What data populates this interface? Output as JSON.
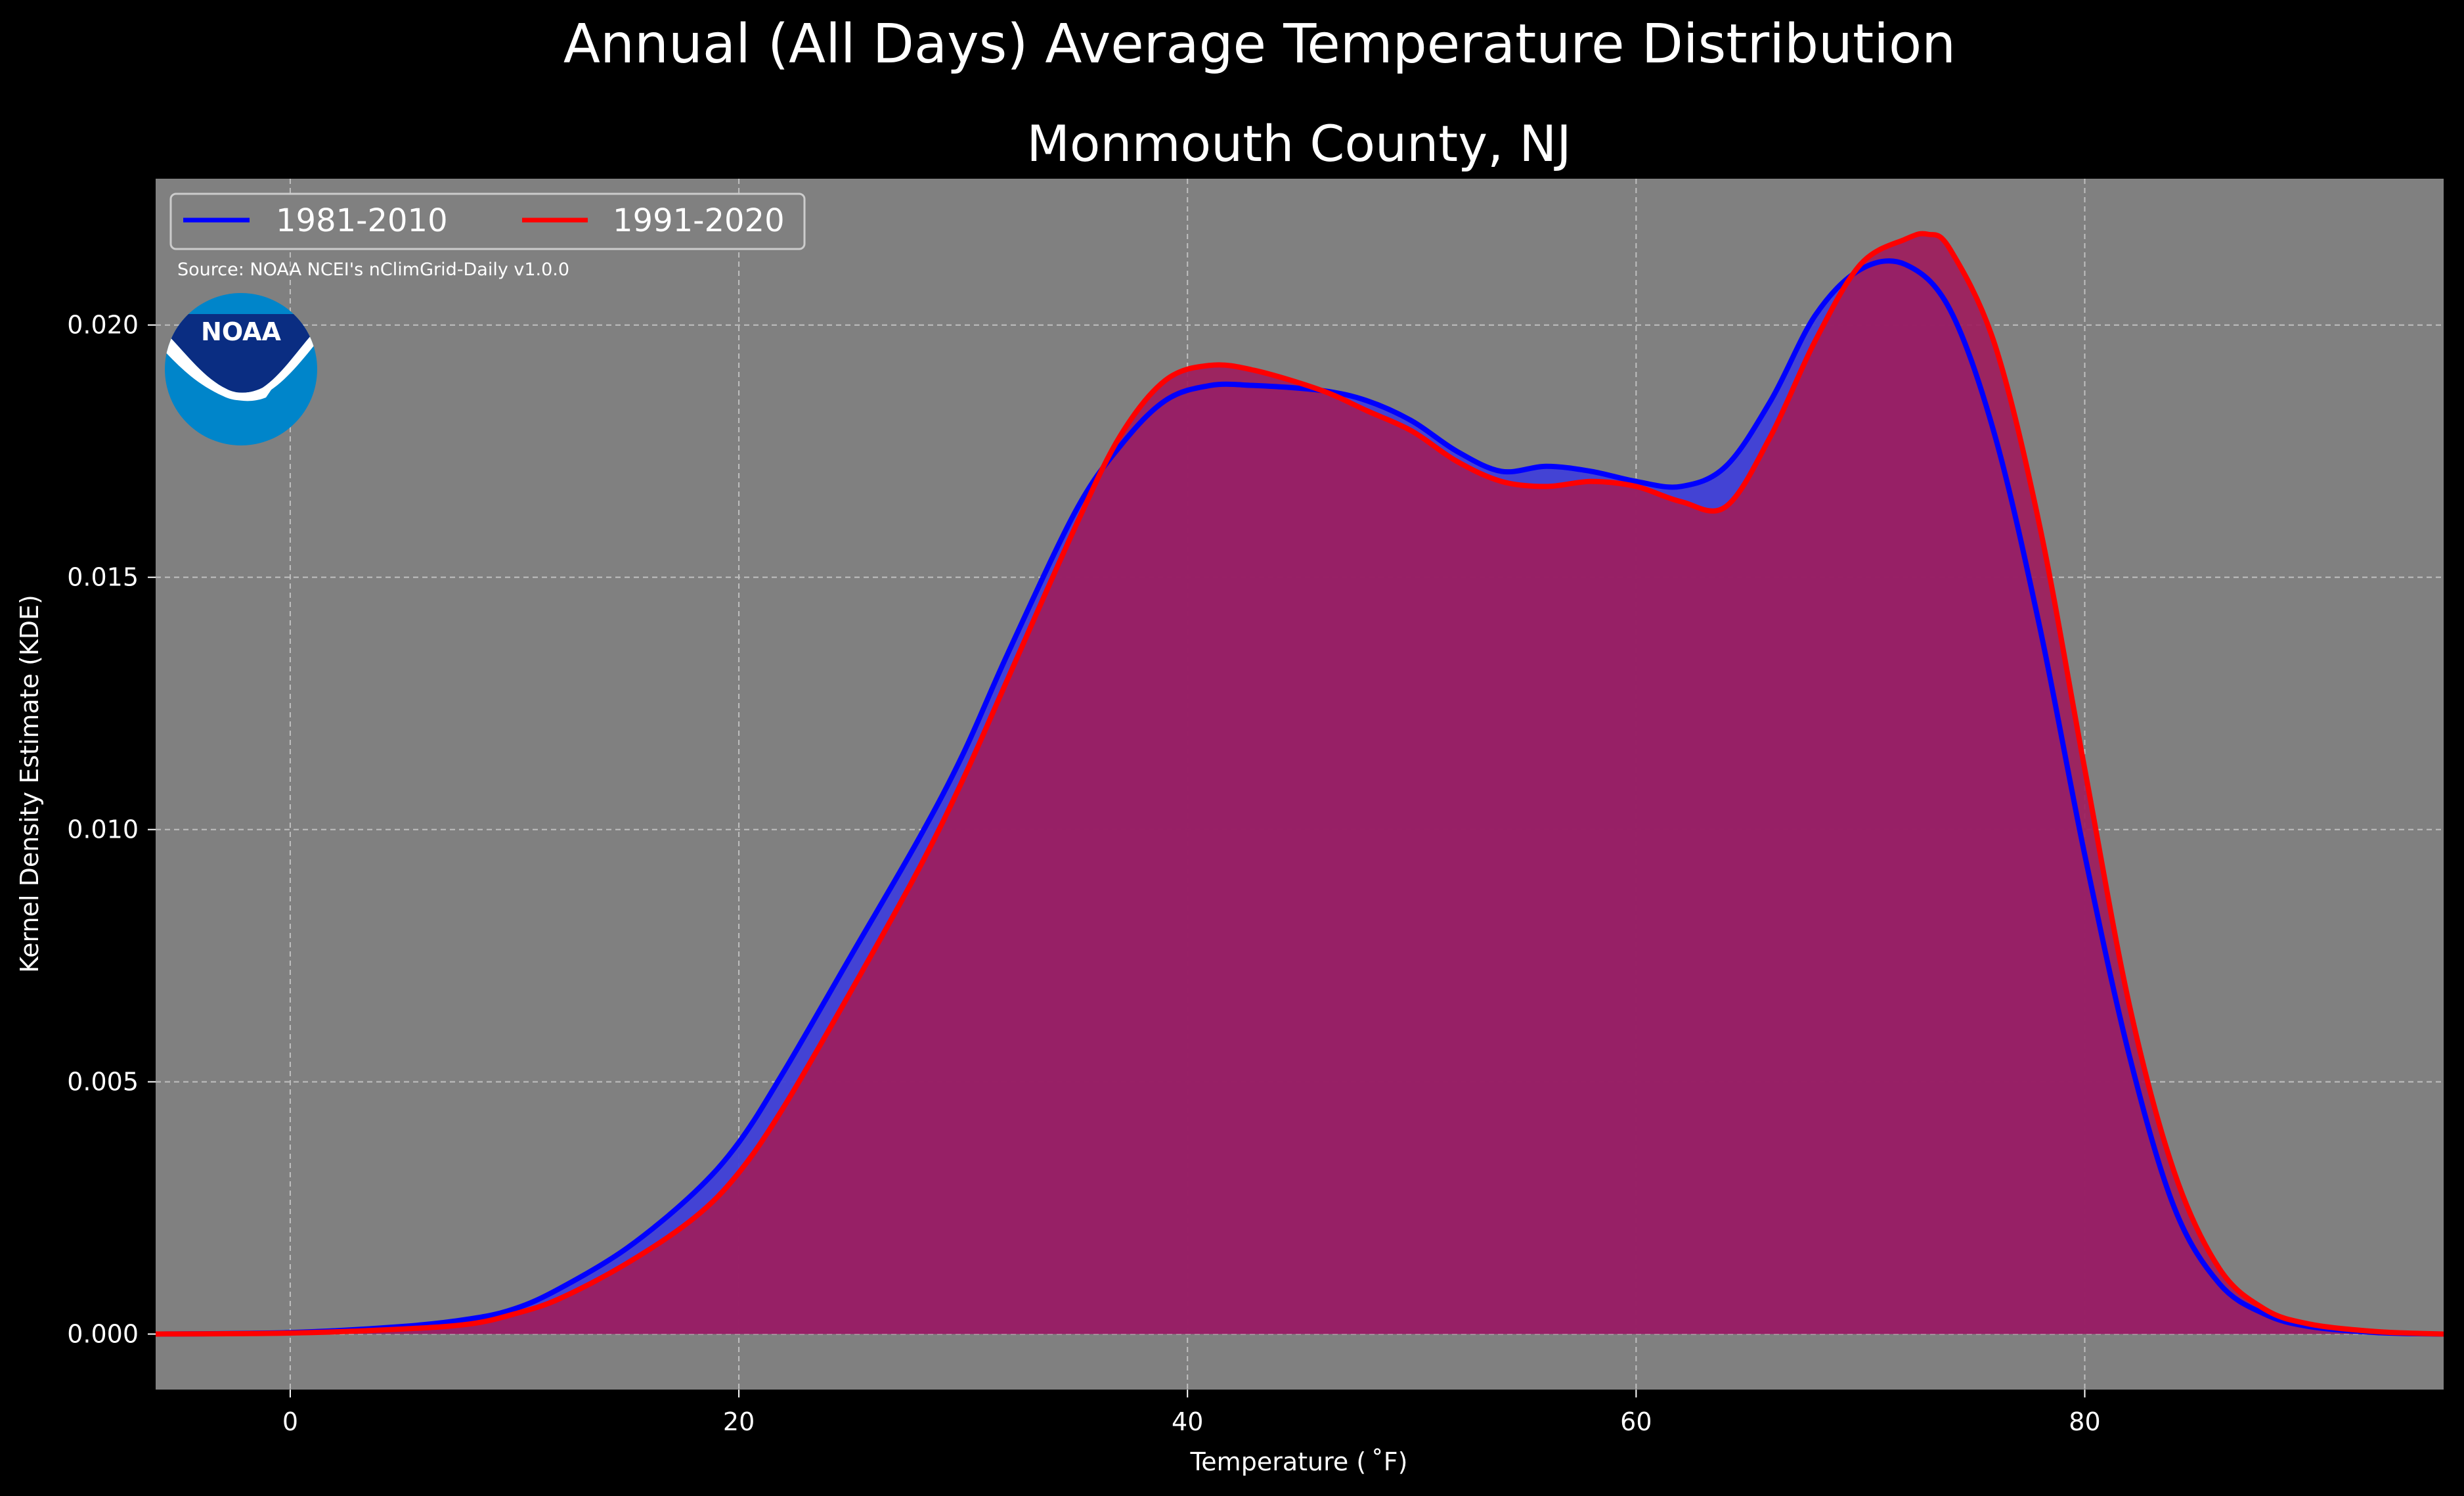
{
  "chart_data": {
    "type": "area",
    "title": "Annual (All Days) Average Temperature Distribution",
    "subtitle": "Monmouth County, NJ",
    "xlabel": "Temperature ($^\\circ$F)",
    "xlabel_display": "Temperature ( ˚F)",
    "ylabel": "Kernel Density Estimate (KDE)",
    "xlim": [
      -6,
      96
    ],
    "ylim": [
      -0.0011,
      0.0229
    ],
    "xticks": [
      0,
      20,
      40,
      60,
      80
    ],
    "xtick_labels": [
      "0",
      "20",
      "40",
      "60",
      "80"
    ],
    "yticks": [
      0.0,
      0.005,
      0.01,
      0.015,
      0.02
    ],
    "ytick_labels": [
      "0.000",
      "0.005",
      "0.010",
      "0.015",
      "0.020"
    ],
    "grid": true,
    "legend_placement": "top-left",
    "source_note": "Source: NOAA NCEI's nClimGrid-Daily v1.0.0",
    "logo_text": "NOAA",
    "series": [
      {
        "name": "1981-2010",
        "color": "#0000ff",
        "x": [
          -6,
          0,
          5,
          8,
          10,
          12,
          15,
          18,
          20,
          22,
          25,
          28,
          30,
          32,
          35,
          37,
          39,
          41,
          43,
          46,
          48,
          50,
          52,
          54,
          56,
          58,
          60,
          62,
          64,
          66,
          68,
          70,
          72,
          74,
          76,
          78,
          80,
          82,
          84,
          86,
          88,
          90,
          93,
          96
        ],
        "y": [
          0.0,
          3e-05,
          0.00015,
          0.0003,
          0.0005,
          0.0009,
          0.0017,
          0.0028,
          0.0038,
          0.0052,
          0.0075,
          0.0098,
          0.0115,
          0.0135,
          0.0163,
          0.0176,
          0.0185,
          0.0188,
          0.0188,
          0.0187,
          0.0185,
          0.0181,
          0.0175,
          0.0171,
          0.0172,
          0.0171,
          0.0169,
          0.0168,
          0.0172,
          0.0185,
          0.0202,
          0.0211,
          0.0212,
          0.0203,
          0.0178,
          0.014,
          0.0095,
          0.0055,
          0.0025,
          0.001,
          0.0004,
          0.00015,
          3e-05,
          0.0
        ]
      },
      {
        "name": "1991-2020",
        "color": "#ff0000",
        "x": [
          -6,
          0,
          5,
          8,
          10,
          12,
          15,
          18,
          20,
          22,
          25,
          28,
          30,
          32,
          35,
          37,
          39,
          41,
          43,
          46,
          48,
          50,
          52,
          54,
          56,
          58,
          60,
          62,
          64,
          66,
          68,
          70,
          72,
          73,
          74,
          76,
          78,
          80,
          82,
          84,
          86,
          88,
          90,
          93,
          96
        ],
        "y": [
          0.0,
          2e-05,
          0.0001,
          0.0002,
          0.0004,
          0.0007,
          0.0014,
          0.0023,
          0.0032,
          0.0045,
          0.0068,
          0.0092,
          0.011,
          0.013,
          0.016,
          0.0178,
          0.0189,
          0.0192,
          0.0191,
          0.0187,
          0.0183,
          0.0179,
          0.0173,
          0.0169,
          0.0168,
          0.0169,
          0.0168,
          0.0165,
          0.0164,
          0.0178,
          0.0197,
          0.0212,
          0.0217,
          0.0218,
          0.0215,
          0.0196,
          0.016,
          0.0112,
          0.0065,
          0.0032,
          0.0013,
          0.0005,
          0.0002,
          5e-05,
          0.0
        ]
      }
    ]
  },
  "style": {
    "page_bg": "#000000",
    "axes_bg": "#808080",
    "grid_color": "#bfbfbf",
    "fill_color_1": "#3f3fd8",
    "fill_color_2": "#9e1e5e",
    "noaa_dark_blue": "#0a2d82",
    "noaa_light_blue": "#0085ca"
  }
}
